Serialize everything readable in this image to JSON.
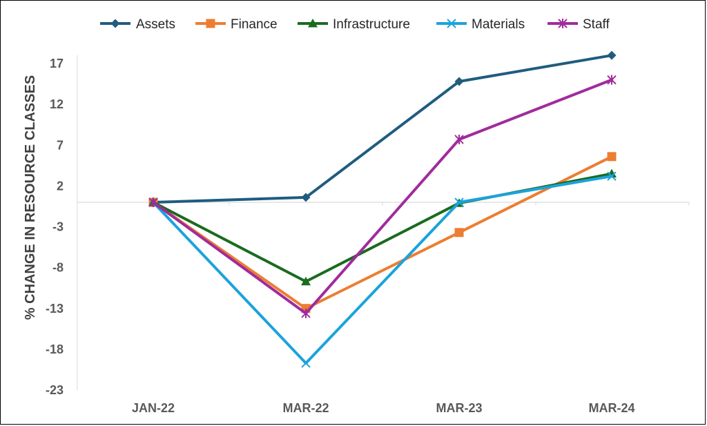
{
  "chart_data": {
    "type": "line",
    "title": "",
    "xlabel": "",
    "ylabel": "% CHANGE IN RESOURCE CLASSES",
    "categories": [
      "JAN-22",
      "MAR-22",
      "MAR-23",
      "MAR-24"
    ],
    "yticks": [
      "17",
      "12",
      "7",
      "2",
      "-3",
      "-8",
      "-13",
      "-18",
      "-23"
    ],
    "ylim": [
      -23,
      17
    ],
    "grid": false,
    "legend_position": "top",
    "series": [
      {
        "name": "Assets",
        "color": "#1f5c7f",
        "marker": "diamond",
        "values": [
          0,
          0.6,
          14.8,
          18
        ]
      },
      {
        "name": "Finance",
        "color": "#ed7d31",
        "marker": "square",
        "values": [
          0,
          -13,
          -3.7,
          5.6
        ]
      },
      {
        "name": "Infrastructure",
        "color": "#1a6b1f",
        "marker": "triangle",
        "values": [
          0,
          -9.7,
          -0.1,
          3.5
        ]
      },
      {
        "name": "Materials",
        "color": "#1aa3dc",
        "marker": "x",
        "values": [
          0,
          -19.7,
          0,
          3.2
        ]
      },
      {
        "name": "Staff",
        "color": "#a02b9c",
        "marker": "star",
        "values": [
          0,
          -13.6,
          7.7,
          15
        ]
      }
    ]
  }
}
